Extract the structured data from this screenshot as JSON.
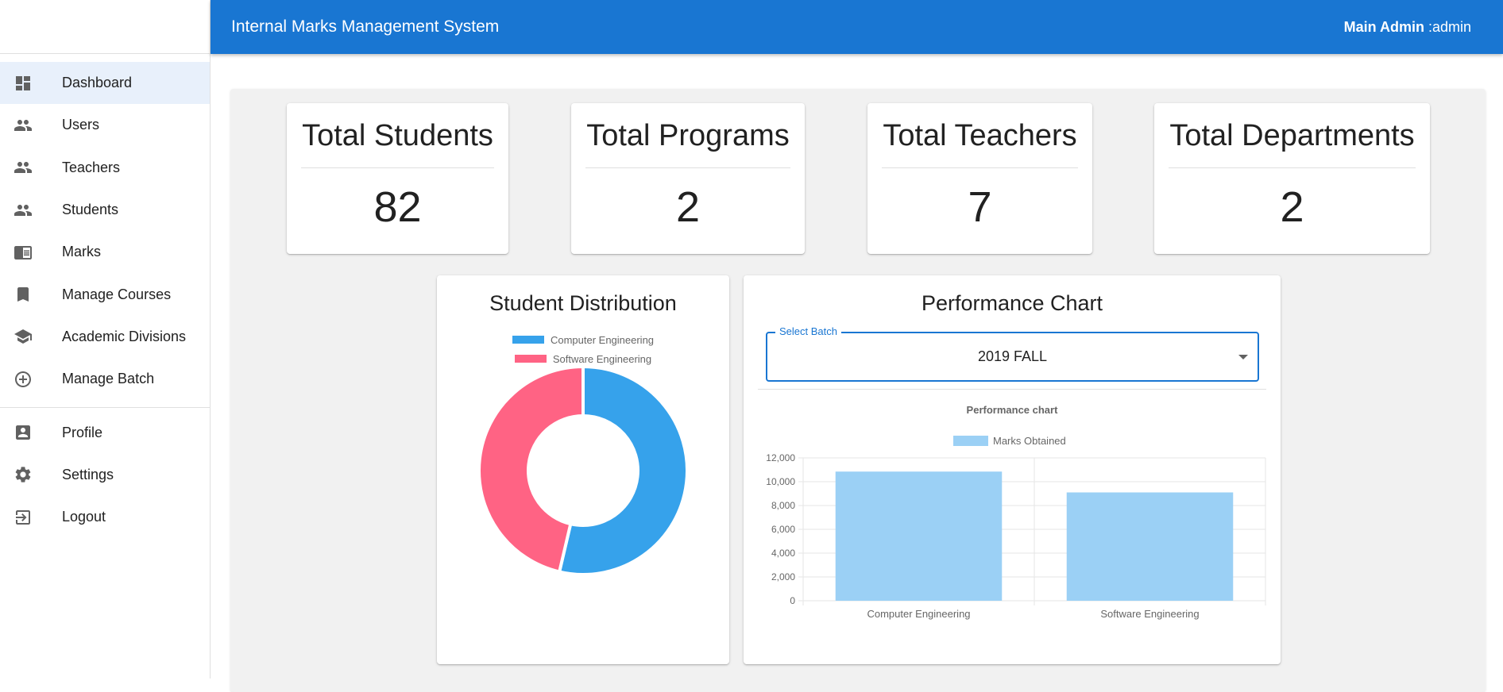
{
  "topbar": {
    "title": "Internal Marks Management System",
    "user_name": "Main Admin",
    "user_role": ":admin"
  },
  "sidebar": {
    "items": [
      {
        "label": "Dashboard",
        "icon": "dashboard-icon",
        "active": true
      },
      {
        "label": "Users",
        "icon": "people-icon"
      },
      {
        "label": "Teachers",
        "icon": "people-icon"
      },
      {
        "label": "Students",
        "icon": "people-icon"
      },
      {
        "label": "Marks",
        "icon": "chrome-reader-icon"
      },
      {
        "label": "Manage Courses",
        "icon": "bookmark-icon"
      },
      {
        "label": "Academic Divisions",
        "icon": "school-icon"
      },
      {
        "label": "Manage Batch",
        "icon": "add-circle-icon"
      }
    ],
    "secondary_items": [
      {
        "label": "Profile",
        "icon": "account-box-icon"
      },
      {
        "label": "Settings",
        "icon": "gear-icon"
      },
      {
        "label": "Logout",
        "icon": "logout-icon"
      }
    ]
  },
  "stats": [
    {
      "title": "Total Students",
      "value": "82"
    },
    {
      "title": "Total Programs",
      "value": "2"
    },
    {
      "title": "Total Teachers",
      "value": "7"
    },
    {
      "title": "Total Departments",
      "value": "2"
    }
  ],
  "distribution": {
    "title": "Student Distribution",
    "legend": [
      {
        "label": "Computer Engineering",
        "color": "#36a2eb"
      },
      {
        "label": "Software Engineering",
        "color": "#ff6384"
      }
    ]
  },
  "performance": {
    "title": "Performance Chart",
    "select_label": "Select Batch",
    "select_value": "2019 FALL",
    "chart_title": "Performance chart",
    "legend_label": "Marks Obtained"
  },
  "chart_data": [
    {
      "type": "pie",
      "title": "Student Distribution",
      "categories": [
        "Computer Engineering",
        "Software Engineering"
      ],
      "values": [
        44,
        38
      ],
      "colors": [
        "#36a2eb",
        "#ff6384"
      ],
      "legend": "top"
    },
    {
      "type": "bar",
      "title": "Performance chart",
      "categories": [
        "Computer Engineering",
        "Software Engineering"
      ],
      "series": [
        {
          "name": "Marks Obtained",
          "values": [
            10850,
            9100
          ]
        }
      ],
      "ylim": [
        0,
        12000
      ],
      "yticks": [
        "0",
        "2,000",
        "4,000",
        "6,000",
        "8,000",
        "10,000",
        "12,000"
      ],
      "grid": true,
      "legend": "top",
      "color": "#9bd0f5"
    }
  ]
}
